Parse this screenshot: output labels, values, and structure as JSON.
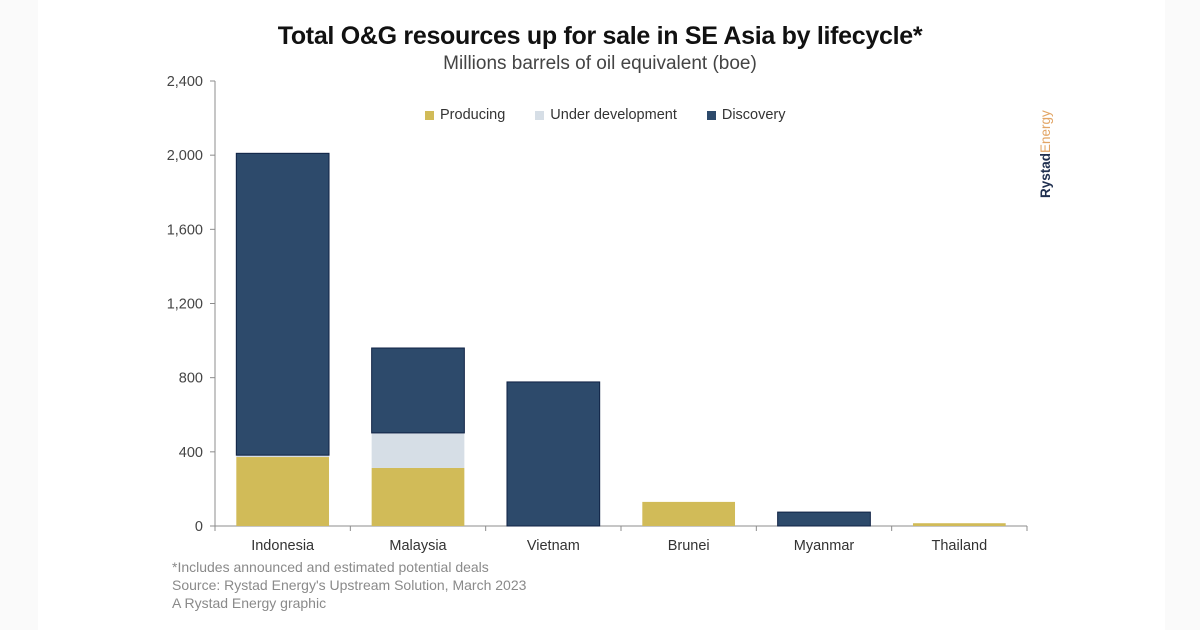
{
  "brand": {
    "part1": "Rystad",
    "part2": "Energy"
  },
  "notes": [
    "*Includes announced and estimated potential deals",
    "Source: Rystad Energy's Upstream Solution, March 2023",
    "A Rystad Energy graphic"
  ],
  "chart_data": {
    "type": "bar",
    "stacked": true,
    "title": "Total O&G resources up for sale in SE Asia by lifecycle*",
    "subtitle": "Millions barrels of oil equivalent (boe)",
    "xlabel": "",
    "ylabel": "",
    "ylim": [
      0,
      2400
    ],
    "yticks": [
      0,
      400,
      800,
      1200,
      1600,
      2000,
      2400
    ],
    "ytick_labels": [
      "0",
      "400",
      "800",
      "1,200",
      "1,600",
      "2,000",
      "2,400"
    ],
    "grid": false,
    "legend_position": "top-center",
    "categories": [
      "Indonesia",
      "Malaysia",
      "Vietnam",
      "Brunei",
      "Myanmar",
      "Thailand"
    ],
    "series": [
      {
        "name": "Producing",
        "color": "#d1bb58",
        "values": [
          372,
          313,
          0,
          130,
          0,
          15
        ]
      },
      {
        "name": "Under development",
        "color": "#d6dee6",
        "values": [
          10,
          189,
          0,
          0,
          0,
          0
        ]
      },
      {
        "name": "Discovery",
        "color": "#2d4a6b",
        "values": [
          1628,
          458,
          777,
          0,
          75,
          0
        ]
      }
    ]
  }
}
